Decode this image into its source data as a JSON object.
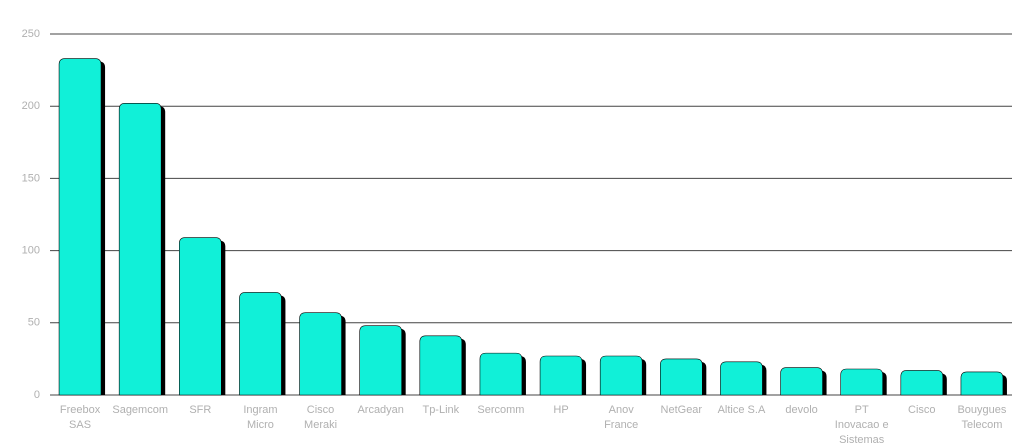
{
  "chart_data": {
    "type": "bar",
    "categories": [
      "Freebox SAS",
      "Sagemcom",
      "SFR",
      "Ingram Micro",
      "Cisco Meraki",
      "Arcadyan",
      "Tp-Link",
      "Sercomm",
      "HP",
      "Anov France",
      "NetGear",
      "Altice S.A",
      "devolo",
      "PT Inovacao e Sistemas",
      "Cisco",
      "Bouygues Telecom"
    ],
    "values": [
      233,
      202,
      109,
      71,
      57,
      48,
      41,
      29,
      27,
      27,
      25,
      23,
      19,
      18,
      17,
      16
    ],
    "color": "#11f0d8",
    "ylim": [
      0,
      250
    ],
    "yticks": [
      0,
      50,
      100,
      150,
      200,
      250
    ],
    "grid": true
  }
}
